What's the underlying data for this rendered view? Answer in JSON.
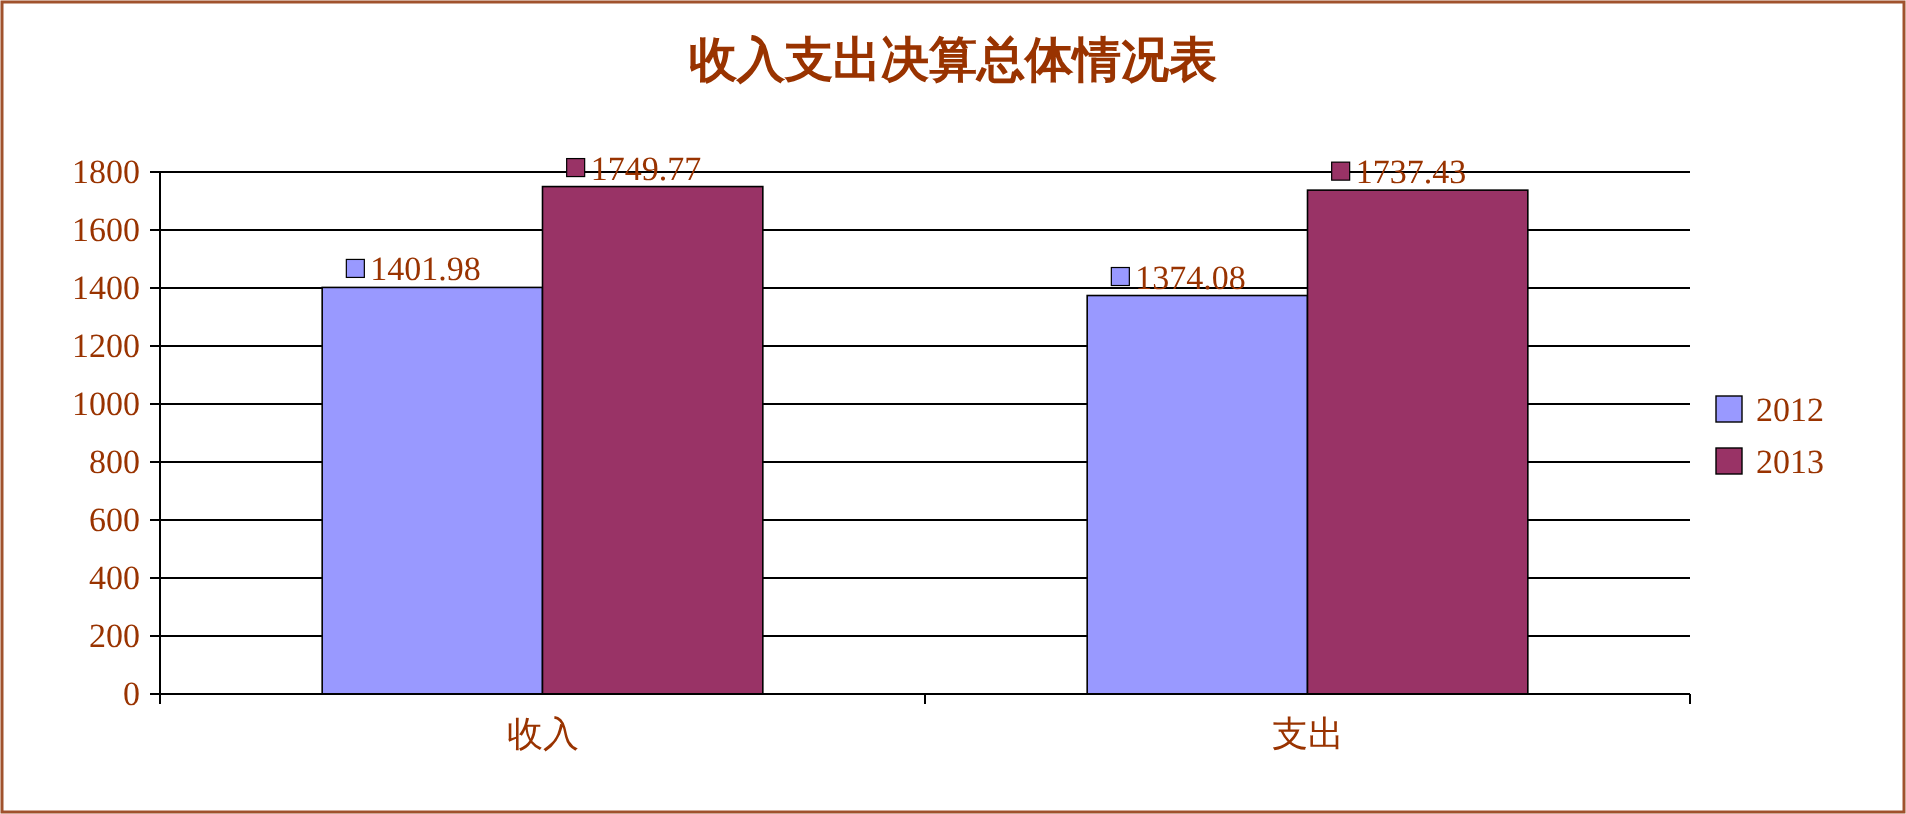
{
  "chart_data": {
    "type": "bar",
    "title": "收入支出决算总体情况表",
    "categories": [
      "收入",
      "支出"
    ],
    "series": [
      {
        "name": "2012",
        "color": "#9999ff",
        "values": [
          1401.98,
          1374.08
        ]
      },
      {
        "name": "2013",
        "color": "#993366",
        "values": [
          1749.77,
          1737.43
        ]
      }
    ],
    "ylim": [
      0,
      1800
    ],
    "yticks": [
      0,
      200,
      400,
      600,
      800,
      1000,
      1200,
      1400,
      1600,
      1800
    ],
    "grid": "y",
    "legend": "right",
    "data_labels": true
  }
}
